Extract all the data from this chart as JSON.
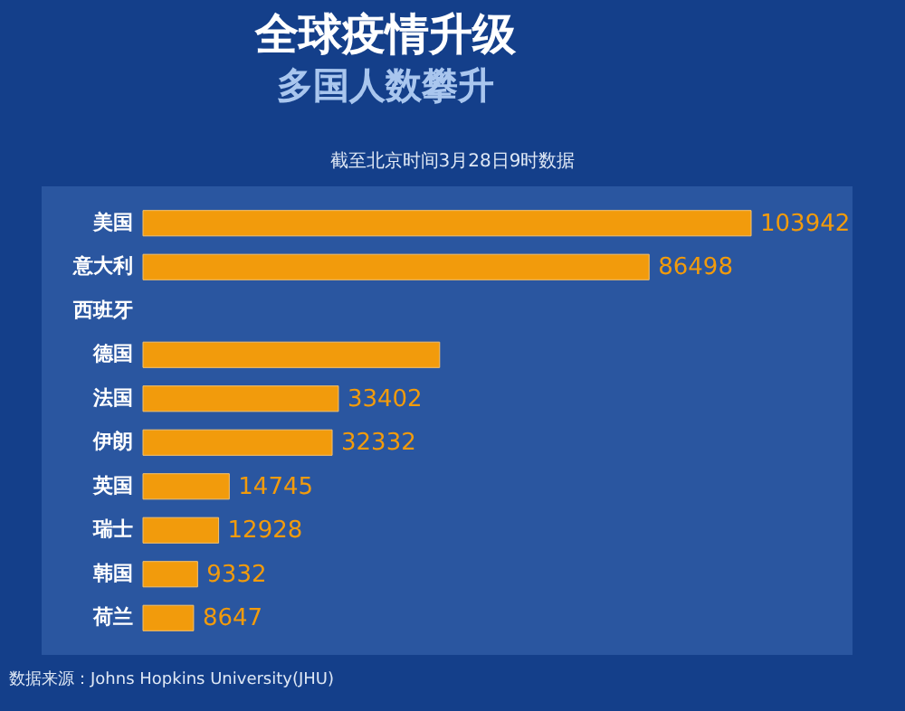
{
  "chart_data": {
    "type": "bar",
    "orientation": "horizontal",
    "title": "全球疫情升级",
    "subtitle": "多国人数攀升",
    "annotations": [
      "截至北京时间3月28日9时数据",
      "数据来源：Johns Hopkins University(JHU)"
    ],
    "categories": [
      "美国",
      "意大利",
      "西班牙",
      "德国",
      "法国",
      "伊朗",
      "英国",
      "瑞士",
      "韩国",
      "荷兰"
    ],
    "values": [
      103942,
      86498,
      null,
      50700,
      33402,
      32332,
      14745,
      12928,
      9332,
      8647
    ],
    "value_labels": [
      "103942",
      "86498",
      null,
      null,
      "33402",
      "32332",
      "14745",
      "12928",
      "9332",
      "8647"
    ],
    "color": "#f29b0c"
  }
}
